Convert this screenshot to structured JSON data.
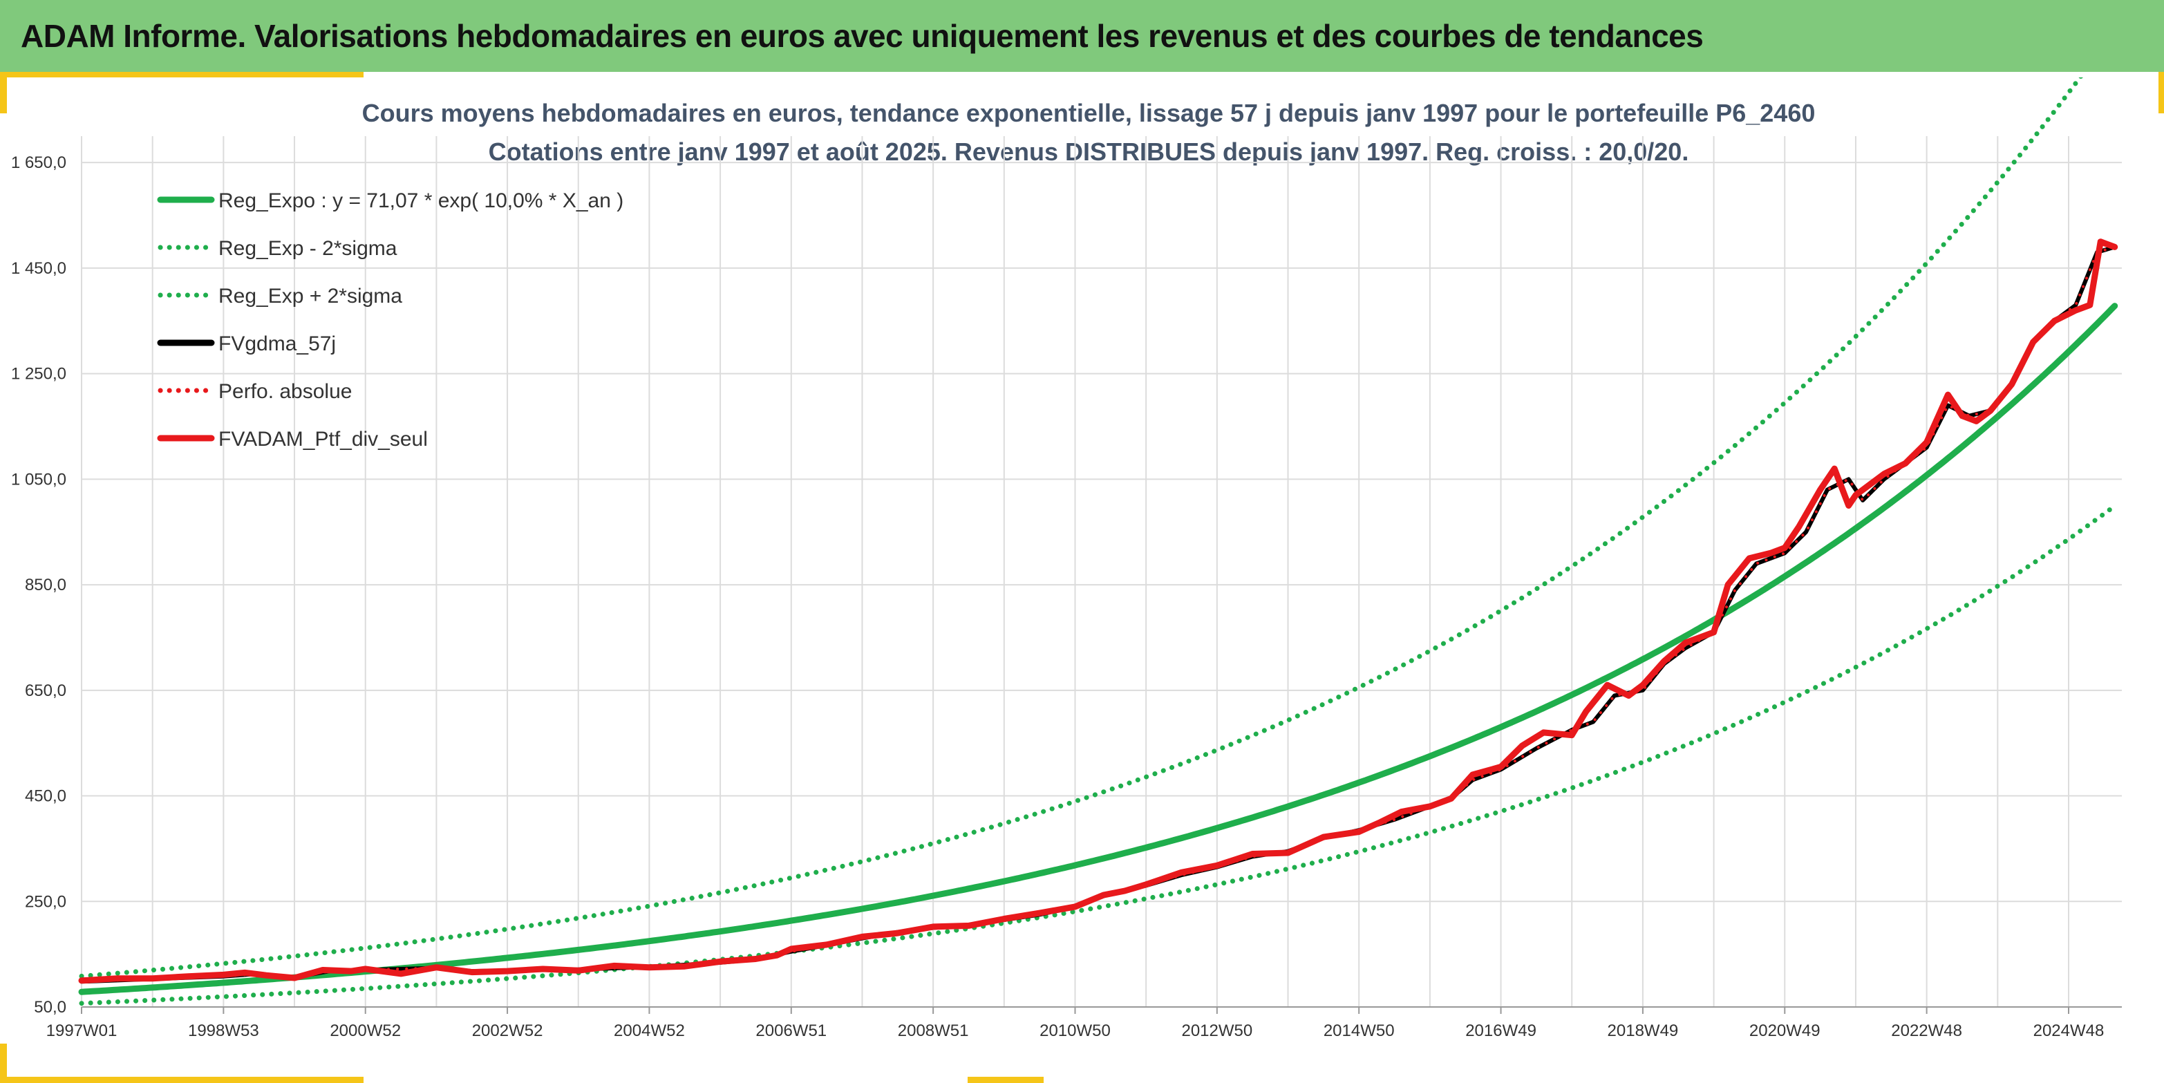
{
  "header": {
    "title": "ADAM Informe. Valorisations hebdomadaires en euros avec uniquement les revenus et des courbes de tendances"
  },
  "chart_data": {
    "type": "line",
    "title": "Cours moyens hebdomadaires en euros, tendance exponentielle, lissage 57 j depuis janv 1997 pour le portefeuille P6_2460",
    "subtitle": "Cotations entre janv 1997 et août 2025. Revenus DISTRIBUES depuis janv 1997. Reg. croiss. : 20,0/20.",
    "x_start_year": 1997.0,
    "x_end_year": 2025.65,
    "xlim": [
      1997.0,
      2025.75
    ],
    "x_ticks": [
      {
        "label": "1997W01",
        "year": 1997.0
      },
      {
        "label": "1998W53",
        "year": 1999.0
      },
      {
        "label": "2000W52",
        "year": 2001.0
      },
      {
        "label": "2002W52",
        "year": 2003.0
      },
      {
        "label": "2004W52",
        "year": 2005.0
      },
      {
        "label": "2006W51",
        "year": 2007.0
      },
      {
        "label": "2008W51",
        "year": 2009.0
      },
      {
        "label": "2010W50",
        "year": 2011.0
      },
      {
        "label": "2012W50",
        "year": 2013.0
      },
      {
        "label": "2014W50",
        "year": 2015.0
      },
      {
        "label": "2016W49",
        "year": 2017.0
      },
      {
        "label": "2018W49",
        "year": 2019.0
      },
      {
        "label": "2020W49",
        "year": 2021.0
      },
      {
        "label": "2022W48",
        "year": 2023.0
      },
      {
        "label": "2024W48",
        "year": 2025.0
      }
    ],
    "y_ticks": [
      {
        "label": "50,0",
        "value": 50
      },
      {
        "label": "250,0",
        "value": 250
      },
      {
        "label": "450,0",
        "value": 450
      },
      {
        "label": "650,0",
        "value": 650
      },
      {
        "label": "850,0",
        "value": 850
      },
      {
        "label": "1 050,0",
        "value": 1050
      },
      {
        "label": "1 250,0",
        "value": 1250
      },
      {
        "label": "1 450,0",
        "value": 1450
      },
      {
        "label": "1 650,0",
        "value": 1650
      }
    ],
    "ylim": [
      50,
      1700
    ],
    "grid": true,
    "legend_position": "top-left",
    "regression": {
      "a": 71.07,
      "rate": 0.1,
      "sigma_factor_low": 0.725,
      "sigma_factor_high": 1.38
    },
    "series": [
      {
        "name": "Reg_Expo : y = 71,07 * exp( 10,0% *  X_an )",
        "kind": "regression",
        "color": "#1fae4c",
        "style": "solid"
      },
      {
        "name": "Reg_Exp - 2*sigma",
        "kind": "regression_low",
        "color": "#1fae4c",
        "style": "dotted"
      },
      {
        "name": "Reg_Exp + 2*sigma",
        "kind": "regression_high",
        "color": "#1fae4c",
        "style": "dotted"
      },
      {
        "name": "FVgdma_57j",
        "kind": "data",
        "color": "#000000",
        "style": "solid",
        "x": [
          1997.0,
          1998.0,
          1999.0,
          1999.5,
          2000.0,
          2000.5,
          2001.0,
          2002.0,
          2002.5,
          2003.0,
          2004.0,
          2005.0,
          2006.0,
          2006.5,
          2007.0,
          2007.5,
          2008.0,
          2008.5,
          2009.0,
          2009.5,
          2010.0,
          2010.5,
          2011.0,
          2011.5,
          2012.0,
          2012.5,
          2013.0,
          2013.5,
          2014.0,
          2014.5,
          2015.0,
          2015.5,
          2016.0,
          2016.3,
          2016.6,
          2017.0,
          2017.5,
          2018.0,
          2018.3,
          2018.6,
          2019.0,
          2019.3,
          2019.6,
          2020.0,
          2020.3,
          2020.6,
          2021.0,
          2021.3,
          2021.6,
          2021.9,
          2022.1,
          2022.4,
          2022.7,
          2023.0,
          2023.3,
          2023.6,
          2023.9,
          2024.2,
          2024.5,
          2024.8,
          2025.1,
          2025.4,
          2025.65
        ],
        "y": [
          98,
          103,
          108,
          113,
          106,
          118,
          120,
          124,
          118,
          119,
          121,
          126,
          134,
          140,
          155,
          167,
          180,
          192,
          200,
          205,
          215,
          225,
          240,
          265,
          280,
          300,
          315,
          335,
          345,
          370,
          385,
          405,
          430,
          445,
          480,
          500,
          540,
          575,
          590,
          640,
          650,
          700,
          730,
          760,
          840,
          890,
          910,
          950,
          1030,
          1050,
          1010,
          1050,
          1080,
          1110,
          1190,
          1170,
          1180,
          1230,
          1310,
          1350,
          1380,
          1480,
          1490
        ]
      },
      {
        "name": "Perfo. absolue",
        "kind": "data",
        "color": "#e8191c",
        "style": "dotted",
        "x": [
          1997.0,
          1998.0,
          1999.0,
          1999.5,
          2000.0,
          2000.5,
          2001.0,
          2002.0,
          2002.5,
          2003.0,
          2004.0,
          2005.0,
          2006.0,
          2006.5,
          2007.0,
          2007.5,
          2008.0,
          2008.5,
          2009.0,
          2009.5,
          2010.0,
          2010.5,
          2011.0,
          2011.5,
          2012.0,
          2012.5,
          2013.0,
          2013.5,
          2014.0,
          2014.5,
          2015.0,
          2015.5,
          2016.0,
          2016.3,
          2016.6,
          2017.0,
          2017.5,
          2018.0,
          2018.3,
          2018.6,
          2019.0,
          2019.3,
          2019.6,
          2020.0,
          2020.3,
          2020.6,
          2021.0,
          2021.3,
          2021.6,
          2021.9,
          2022.1,
          2022.4,
          2022.7,
          2023.0,
          2023.3,
          2023.6,
          2023.9,
          2024.2,
          2024.5,
          2024.8,
          2025.1,
          2025.4,
          2025.65
        ],
        "y": [
          98,
          103,
          108,
          113,
          106,
          118,
          120,
          124,
          118,
          119,
          121,
          126,
          134,
          140,
          155,
          167,
          180,
          192,
          200,
          205,
          215,
          225,
          240,
          265,
          280,
          300,
          315,
          335,
          345,
          370,
          385,
          405,
          430,
          445,
          480,
          500,
          540,
          575,
          590,
          640,
          650,
          700,
          730,
          760,
          840,
          890,
          910,
          950,
          1030,
          1050,
          1010,
          1050,
          1080,
          1110,
          1190,
          1170,
          1180,
          1230,
          1310,
          1350,
          1380,
          1480,
          1490
        ]
      },
      {
        "name": "FVADAM_Ptf_div_seul",
        "kind": "data",
        "color": "#e8191c",
        "style": "solid",
        "x": [
          1997.0,
          1997.5,
          1998.0,
          1998.5,
          1999.0,
          1999.3,
          1999.6,
          2000.0,
          2000.4,
          2000.8,
          2001.0,
          2001.5,
          2002.0,
          2002.5,
          2003.0,
          2003.5,
          2004.0,
          2004.5,
          2005.0,
          2005.5,
          2006.0,
          2006.5,
          2006.8,
          2007.0,
          2007.5,
          2008.0,
          2008.5,
          2009.0,
          2009.5,
          2010.0,
          2010.5,
          2011.0,
          2011.4,
          2011.7,
          2012.0,
          2012.5,
          2013.0,
          2013.5,
          2014.0,
          2014.5,
          2015.0,
          2015.3,
          2015.6,
          2016.0,
          2016.3,
          2016.6,
          2017.0,
          2017.3,
          2017.6,
          2018.0,
          2018.2,
          2018.5,
          2018.8,
          2019.0,
          2019.3,
          2019.6,
          2020.0,
          2020.2,
          2020.5,
          2020.8,
          2021.0,
          2021.2,
          2021.5,
          2021.7,
          2021.9,
          2022.0,
          2022.2,
          2022.4,
          2022.7,
          2023.0,
          2023.3,
          2023.5,
          2023.7,
          2023.9,
          2024.2,
          2024.5,
          2024.8,
          2025.1,
          2025.3,
          2025.45,
          2025.65
        ],
        "y": [
          100,
          104,
          104,
          108,
          111,
          115,
          110,
          105,
          120,
          118,
          122,
          113,
          125,
          116,
          118,
          122,
          119,
          128,
          125,
          127,
          136,
          141,
          148,
          160,
          168,
          183,
          190,
          202,
          204,
          217,
          228,
          240,
          262,
          270,
          282,
          305,
          318,
          340,
          342,
          372,
          382,
          400,
          420,
          430,
          445,
          490,
          505,
          545,
          570,
          565,
          610,
          660,
          640,
          660,
          705,
          740,
          760,
          850,
          900,
          910,
          920,
          960,
          1030,
          1070,
          1000,
          1020,
          1040,
          1060,
          1080,
          1120,
          1210,
          1170,
          1160,
          1180,
          1230,
          1310,
          1350,
          1370,
          1380,
          1500,
          1490
        ]
      }
    ]
  }
}
